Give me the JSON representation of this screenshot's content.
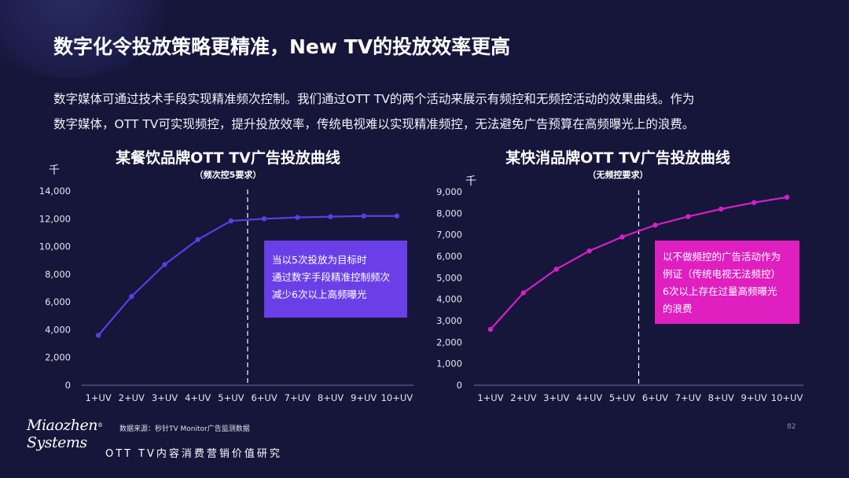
{
  "title": "数字化令投放策略更精准，New TV的投放效率更高",
  "intro_lines": [
    "数字媒体可通过技术手段实现精准频次控制。我们通过OTT  TV的两个活动来展示有频控和无频控活动的效果曲线。作为",
    "数字媒体，OTT TV可实现频控，提升投放效率，传统电视难以实现精准频控，无法避免广告预算在高频曝光上的浪费。"
  ],
  "chart_data": [
    {
      "type": "line",
      "title": "某餐饮品牌OTT TV广告投放曲线",
      "subtitle": "（频次控5要求）",
      "unit": "千",
      "categories": [
        "1+UV",
        "2+UV",
        "3+UV",
        "4+UV",
        "5+UV",
        "6+UV",
        "7+UV",
        "8+UV",
        "9+UV",
        "10+UV"
      ],
      "values": [
        3600,
        6400,
        8700,
        10500,
        11850,
        12000,
        12100,
        12150,
        12200,
        12200
      ],
      "ylim": [
        0,
        14000
      ],
      "yticks": [
        "0",
        "2,000",
        "4,000",
        "6,000",
        "8,000",
        "10,000",
        "12,000",
        "14,000"
      ],
      "line_color": "#5a3ee6",
      "divider_after": "5+UV",
      "annotation": {
        "lines": [
          "当以5次投放为目标时",
          "通过数字手段精准控制频次",
          "减少6次以上高频曝光"
        ],
        "color": "#6a3fe8"
      },
      "grid": false
    },
    {
      "type": "line",
      "title": "某快消品牌OTT TV广告投放曲线",
      "subtitle": "（无频控要求）",
      "unit": "千",
      "categories": [
        "1+UV",
        "2+UV",
        "3+UV",
        "4+UV",
        "5+UV",
        "6+UV",
        "7+UV",
        "8+UV",
        "9+UV",
        "10+UV"
      ],
      "values": [
        2600,
        4300,
        5400,
        6250,
        6900,
        7450,
        7850,
        8200,
        8500,
        8750
      ],
      "ylim": [
        0,
        9000
      ],
      "yticks": [
        "0",
        "1,000",
        "2,000",
        "3,000",
        "4,000",
        "5,000",
        "6,000",
        "7,000",
        "8,000",
        "9,000"
      ],
      "line_color": "#d81ec8",
      "divider_after": "5+UV",
      "annotation": {
        "lines": [
          "以不做频控的广告活动作为",
          "例证（传统电视无法频控）",
          "6次以上存在过量高频曝光",
          "的浪费"
        ],
        "color": "#df1fbf"
      },
      "grid": false
    }
  ],
  "footer": {
    "source": "数据来源：秒针TV Monitor广告监测数据",
    "page_number": "82",
    "logo_line1": "Miaozhen",
    "logo_line2": "Systems",
    "logo_mark": "®",
    "study": "OTT TV内容消费营销价值研究"
  }
}
